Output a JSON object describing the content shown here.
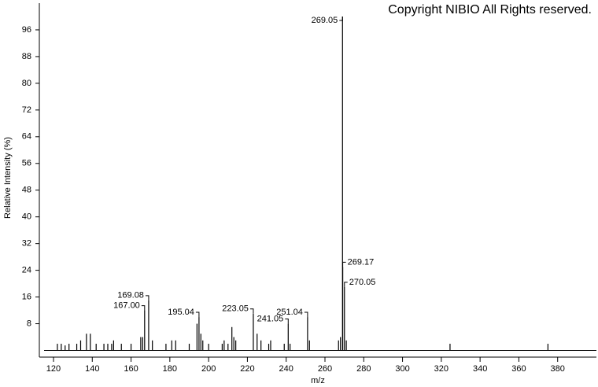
{
  "chart_data": {
    "type": "stem",
    "copyright": "Copyright NIBIO All Rights reserved.",
    "xlabel": "m/z",
    "ylabel": "Relative Intensity (%)",
    "xlim": [
      112.7,
      400
    ],
    "ylim": [
      -2,
      104
    ],
    "xticks": [
      120,
      140,
      160,
      180,
      200,
      220,
      240,
      260,
      280,
      300,
      320,
      340,
      360,
      380
    ],
    "yticks": [
      8,
      16,
      24,
      32,
      40,
      48,
      56,
      64,
      72,
      80,
      88,
      96
    ],
    "color": "#000000",
    "x": [
      122,
      124,
      126,
      128,
      132,
      134,
      137,
      139,
      142,
      146,
      148,
      150,
      151,
      155,
      160,
      165,
      166,
      167.0,
      169.08,
      171,
      178,
      181,
      183,
      190,
      194,
      195.04,
      196,
      197,
      200,
      207,
      208,
      210,
      212,
      213,
      214,
      223.05,
      225,
      227,
      231,
      232,
      239,
      241.05,
      242,
      251.04,
      252,
      267,
      268,
      269.05,
      269.17,
      270.05,
      271,
      324.5,
      375
    ],
    "values": [
      2,
      2,
      1.5,
      2,
      2,
      3,
      5,
      5,
      2,
      2,
      2,
      2,
      3,
      2,
      2,
      4,
      4,
      12,
      15,
      3,
      2,
      3,
      3,
      2,
      8,
      10,
      5,
      3,
      2,
      2,
      3,
      2,
      7,
      4,
      3,
      11,
      5,
      3,
      2,
      3,
      2,
      8,
      2,
      10,
      3,
      3,
      4,
      100,
      25,
      19,
      3,
      2,
      2
    ],
    "peak_labels": [
      null,
      null,
      null,
      null,
      null,
      null,
      null,
      null,
      null,
      null,
      null,
      null,
      null,
      null,
      null,
      null,
      null,
      "167.00",
      "169.08",
      null,
      null,
      null,
      null,
      null,
      null,
      "195.04",
      null,
      null,
      null,
      null,
      null,
      null,
      null,
      null,
      null,
      "223.05",
      null,
      null,
      null,
      null,
      null,
      "241.05",
      null,
      "251.04",
      null,
      null,
      null,
      "269.05",
      "269.17",
      "270.05",
      null,
      null,
      null
    ]
  }
}
